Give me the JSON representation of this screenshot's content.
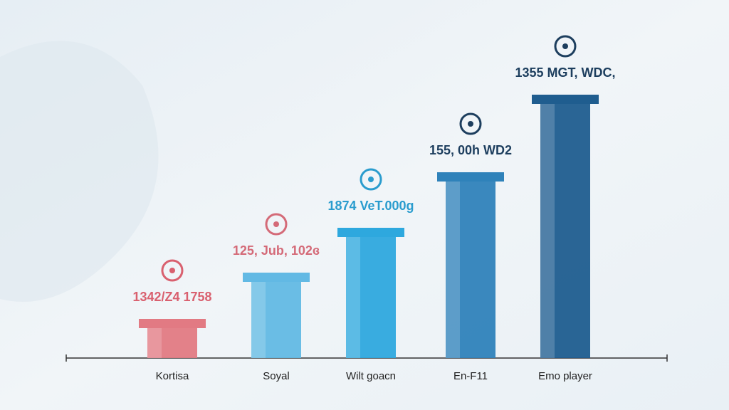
{
  "chart_data": {
    "type": "bar",
    "categories": [
      "Kortisa",
      "Soyal",
      "Wilt goacn",
      "En-F11",
      "Emo player"
    ],
    "values": [
      55,
      120,
      183,
      261,
      370
    ],
    "bar_labels": [
      "1342/Z4 1758",
      "125, Jub, 102ɞ",
      "1874 VeT.000g",
      "155, 00h WD2",
      "1355 MGT, WDC,"
    ],
    "colors": [
      "#e27a83",
      "#62b9e4",
      "#2ea8de",
      "#2f82ba",
      "#1f5d8f"
    ],
    "label_colors": [
      "#d9606f",
      "#d46a78",
      "#2a9cce",
      "#1d3e5e",
      "#1d3e5e"
    ],
    "ylim": [
      0,
      400
    ]
  }
}
